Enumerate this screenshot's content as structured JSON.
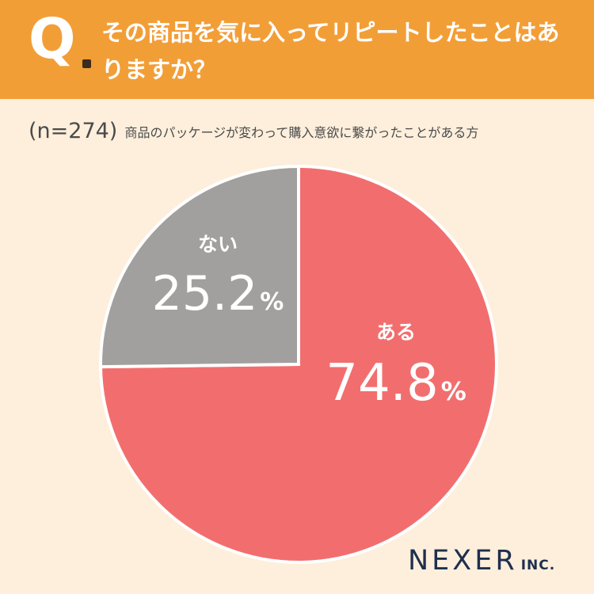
{
  "header": {
    "q_letter": "Q",
    "question": "その商品を気に入ってリピートしたことはありますか？"
  },
  "subtitle": {
    "sample_size": "(n=274)",
    "respondents": "商品のパッケージが変わって購入意欲に繋がったことがある方"
  },
  "logo": {
    "main": "NEXER",
    "sub": "INC."
  },
  "colors": {
    "header_bg": "#f29e37",
    "page_bg": "#fdefdc",
    "aru": "#f26e6e",
    "nai": "#a2a09e",
    "logo": "#1f2f4d"
  },
  "chart_data": {
    "type": "pie",
    "start": "12 o'clock",
    "direction": "clockwise",
    "slices": [
      {
        "label": "ある",
        "value": 74.8,
        "display": "74.8",
        "unit": "%",
        "color": "#f26e6e"
      },
      {
        "label": "ない",
        "value": 25.2,
        "display": "25.2",
        "unit": "%",
        "color": "#a2a09e"
      }
    ]
  }
}
